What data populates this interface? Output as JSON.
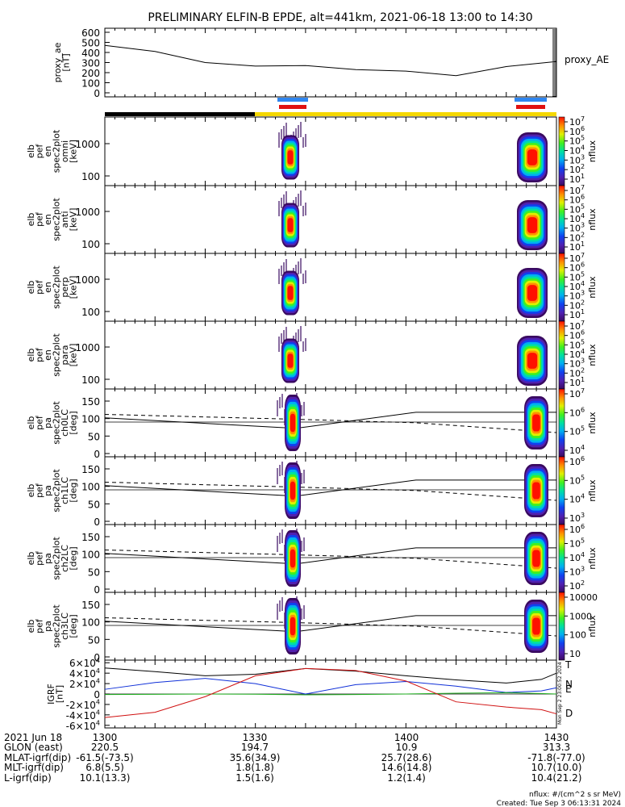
{
  "title": "PRELIMINARY ELFIN-B EPDE, alt=441km, 2021-06-18 13:00 to 14:30",
  "colors": {
    "axis": "#000000",
    "state_black": "#000000",
    "state_yellow": "#f5d800",
    "pass_blue": "#2f86f0",
    "pass_red": "#e01010",
    "igrf_T": "#000000",
    "igrf_N": "#1030d8",
    "igrf_E": "#20b020",
    "igrf_D": "#d01010"
  },
  "chart_data": [
    {
      "type": "line",
      "panel": "proxy_ae",
      "ylabel_lines": [
        "proxy_ae",
        "[nT]"
      ],
      "legend": "proxy_AE",
      "ylim": [
        0,
        600
      ],
      "yticks": [
        "0",
        "100",
        "200",
        "300",
        "400",
        "500",
        "600"
      ],
      "x_minutes": [
        0,
        10,
        20,
        30,
        40,
        50,
        60,
        70,
        80,
        90
      ],
      "values": [
        470,
        410,
        300,
        265,
        270,
        230,
        215,
        170,
        260,
        310
      ]
    },
    {
      "type": "heatmap",
      "panel": "spec-omni",
      "ylabel_lines": [
        "elb",
        "pef",
        "en",
        "spec2plot",
        "omni",
        "[keV]"
      ],
      "y_scale": "log",
      "yticks": [
        "100",
        "1000"
      ],
      "zlabel": "nflux",
      "zticks": [
        "10",
        "10",
        "10",
        "10",
        "10",
        "10",
        "10"
      ],
      "zticks_exp": [
        "1",
        "2",
        "3",
        "4",
        "5",
        "6",
        "7"
      ]
    },
    {
      "type": "heatmap",
      "panel": "spec-anti",
      "ylabel_lines": [
        "elb",
        "pef",
        "en",
        "spec2plot",
        "anti",
        "[keV]"
      ],
      "y_scale": "log",
      "yticks": [
        "100",
        "1000"
      ],
      "zlabel": "nflux",
      "zticks": [
        "10",
        "10",
        "10",
        "10",
        "10",
        "10",
        "10"
      ],
      "zticks_exp": [
        "1",
        "2",
        "3",
        "4",
        "5",
        "6",
        "7"
      ]
    },
    {
      "type": "heatmap",
      "panel": "spec-perp",
      "ylabel_lines": [
        "elb",
        "pef",
        "en",
        "spec2plot",
        "perp",
        "[keV]"
      ],
      "y_scale": "log",
      "yticks": [
        "100",
        "1000"
      ],
      "zlabel": "nflux",
      "zticks": [
        "10",
        "10",
        "10",
        "10",
        "10",
        "10",
        "10"
      ],
      "zticks_exp": [
        "1",
        "2",
        "3",
        "4",
        "5",
        "6",
        "7"
      ]
    },
    {
      "type": "heatmap",
      "panel": "spec-para",
      "ylabel_lines": [
        "elb",
        "pef",
        "en",
        "spec2plot",
        "para",
        "[keV]"
      ],
      "y_scale": "log",
      "yticks": [
        "100",
        "1000"
      ],
      "zlabel": "nflux",
      "zticks": [
        "10",
        "10",
        "10",
        "10",
        "10",
        "10",
        "10"
      ],
      "zticks_exp": [
        "1",
        "2",
        "3",
        "4",
        "5",
        "6",
        "7"
      ]
    },
    {
      "type": "heatmap",
      "panel": "pa-ch0",
      "ylabel_lines": [
        "elb",
        "pef",
        "pa",
        "spec2plot",
        "ch0LC",
        "[deg]"
      ],
      "ylim": [
        0,
        180
      ],
      "yticks": [
        "0",
        "50",
        "100",
        "150"
      ],
      "zlabel": "nflux",
      "zticks": [
        "10",
        "10",
        "10",
        "10"
      ],
      "zticks_exp": [
        "4",
        "5",
        "6",
        "7"
      ]
    },
    {
      "type": "heatmap",
      "panel": "pa-ch1",
      "ylabel_lines": [
        "elb",
        "pef",
        "pa",
        "spec2plot",
        "ch1LC",
        "[deg]"
      ],
      "ylim": [
        0,
        180
      ],
      "yticks": [
        "0",
        "50",
        "100",
        "150"
      ],
      "zlabel": "nflux",
      "zticks": [
        "10",
        "10",
        "10",
        "10"
      ],
      "zticks_exp": [
        "3",
        "4",
        "5",
        "6"
      ]
    },
    {
      "type": "heatmap",
      "panel": "pa-ch2",
      "ylabel_lines": [
        "elb",
        "pef",
        "pa",
        "spec2plot",
        "ch2LC",
        "[deg]"
      ],
      "ylim": [
        0,
        180
      ],
      "yticks": [
        "0",
        "50",
        "100",
        "150"
      ],
      "zlabel": "nflux",
      "zticks": [
        "10",
        "10",
        "10",
        "10",
        "10"
      ],
      "zticks_exp": [
        "2",
        "3",
        "4",
        "5",
        "6"
      ]
    },
    {
      "type": "heatmap",
      "panel": "pa-ch3",
      "ylabel_lines": [
        "elb",
        "pef",
        "pa",
        "spec2plot",
        "ch3LC",
        "[deg]"
      ],
      "ylim": [
        0,
        180
      ],
      "yticks": [
        "0",
        "50",
        "100",
        "150"
      ],
      "zlabel": "nflux",
      "zticks": [
        "10",
        "100",
        "1000",
        "10000"
      ],
      "zticks_exp": [
        "",
        "",
        "",
        ""
      ]
    },
    {
      "type": "line",
      "panel": "igrf",
      "ylabel_lines": [
        "IGRF",
        "[nT]"
      ],
      "ylim": [
        -65000,
        65000
      ],
      "yticks": [
        "-6×10",
        "-4×10",
        "-2×10",
        "0",
        "2×10",
        "4×10",
        "6×10"
      ],
      "yticks_exp": [
        "4",
        "4",
        "4",
        "",
        "4",
        "4",
        "4"
      ],
      "x_minutes": [
        0,
        10,
        20,
        30,
        40,
        50,
        60,
        70,
        80,
        87,
        90
      ],
      "series": [
        {
          "name": "T",
          "values": [
            50000,
            43000,
            35000,
            38000,
            49000,
            44000,
            35000,
            27000,
            21000,
            28000,
            40000
          ]
        },
        {
          "name": "N",
          "values": [
            9000,
            22000,
            30000,
            20000,
            0,
            18000,
            24000,
            15000,
            3000,
            6000,
            12000
          ]
        },
        {
          "name": "E",
          "values": [
            -1000,
            -500,
            0,
            -300,
            -1500,
            -1000,
            0,
            1500,
            2500,
            1000,
            0
          ]
        },
        {
          "name": "D",
          "values": [
            -45000,
            -35000,
            -5000,
            35000,
            49000,
            45000,
            25000,
            -15000,
            -25000,
            -30000,
            -38000
          ]
        }
      ]
    }
  ],
  "side_annotation": "Mon Sep  2 23:00:52 2024",
  "ephemeris": {
    "labels": [
      "2021 Jun 18",
      "GLON (east)",
      "MLAT-igrf(dip)",
      "MLT-igrf(dip)",
      "L-igrf(dip)"
    ],
    "columns": [
      [
        "1300",
        "220.5",
        "-61.5(-73.5)",
        "6.8(5.5)",
        "10.1(13.3)"
      ],
      [
        "1330",
        "194.7",
        "35.6(34.9)",
        "1.8(1.8)",
        "1.5(1.6)"
      ],
      [
        "1400",
        "10.9",
        "25.7(28.6)",
        "14.6(14.8)",
        "1.2(1.4)"
      ],
      [
        "1430",
        "313.3",
        "-71.8(-77.0)",
        "10.7(10.0)",
        "10.4(21.2)"
      ]
    ]
  },
  "footer": {
    "units": "nflux: #/(cm^2 s sr MeV)",
    "created": "Created: Tue Sep  3 06:13:31 2024"
  }
}
